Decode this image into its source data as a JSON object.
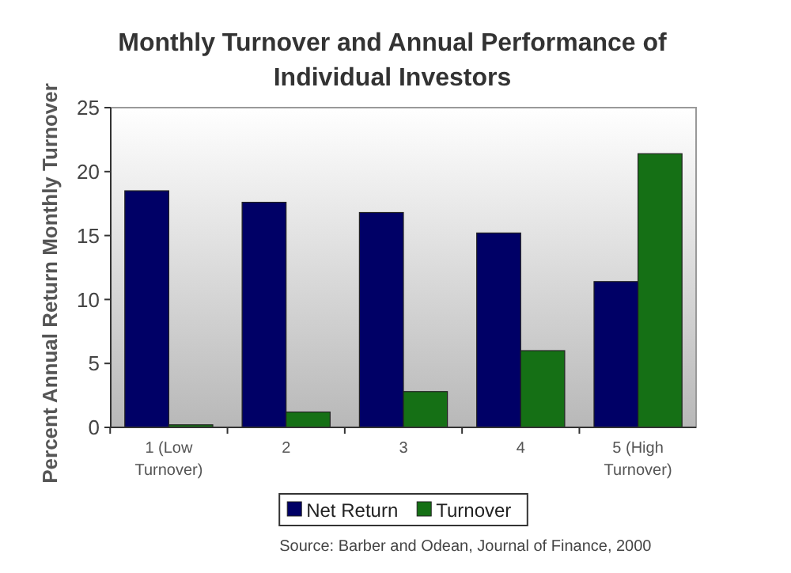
{
  "chart_data": {
    "type": "bar",
    "title": "Monthly Turnover and Annual Performance of Individual Investors",
    "ylabel": "Percent Annual Return  Monthly Turnover",
    "categories": [
      "1 (Low Turnover)",
      "2",
      "3",
      "4",
      "5 (High Turnover)"
    ],
    "series": [
      {
        "name": "Net Return",
        "color": "#000066",
        "values": [
          18.5,
          17.6,
          16.8,
          15.2,
          11.4
        ]
      },
      {
        "name": "Turnover",
        "color": "#157015",
        "values": [
          0.2,
          1.2,
          2.8,
          6.0,
          21.4
        ]
      }
    ],
    "ylim": [
      0,
      25
    ],
    "yticks": [
      0,
      5,
      10,
      15,
      20,
      25
    ],
    "grid": false,
    "legend": "bottom",
    "annotations": [
      "Source: Barber and Odean, Journal of Finance, 2000"
    ]
  }
}
